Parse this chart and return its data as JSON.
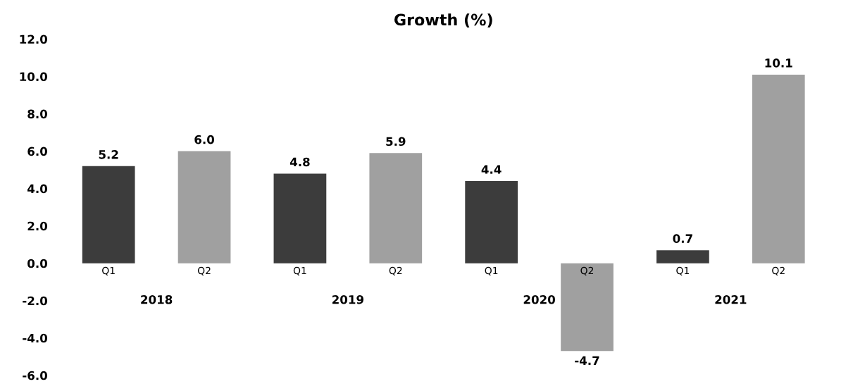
{
  "chart_data": {
    "type": "bar",
    "title": "Growth (%)",
    "categories": [
      "Q1",
      "Q2",
      "Q1",
      "Q2",
      "Q1",
      "Q2",
      "Q1",
      "Q2"
    ],
    "values": [
      5.2,
      6.0,
      4.8,
      5.9,
      4.4,
      -4.7,
      0.7,
      10.1
    ],
    "value_labels": [
      "5.2",
      "6.0",
      "4.8",
      "5.9",
      "4.4",
      "-4.7",
      "0.7",
      "10.1"
    ],
    "colors": [
      "#3c3c3c",
      "#a0a0a0",
      "#3c3c3c",
      "#a0a0a0",
      "#3c3c3c",
      "#a0a0a0",
      "#3c3c3c",
      "#a0a0a0"
    ],
    "ylim": [
      -6,
      12
    ],
    "yticks": [
      {
        "value": -6,
        "label": "-6.0"
      },
      {
        "value": -4,
        "label": "-4.0"
      },
      {
        "value": -2,
        "label": "-2.0"
      },
      {
        "value": 0,
        "label": "0.0"
      },
      {
        "value": 2,
        "label": "2.0"
      },
      {
        "value": 4,
        "label": "4.0"
      },
      {
        "value": 6,
        "label": "6.0"
      },
      {
        "value": 8,
        "label": "8.0"
      },
      {
        "value": 10,
        "label": "10.0"
      },
      {
        "value": 12,
        "label": "12.0"
      }
    ],
    "annotations": [
      "2018",
      "2019",
      "2020",
      "2021"
    ],
    "grid": false,
    "legend": false
  }
}
